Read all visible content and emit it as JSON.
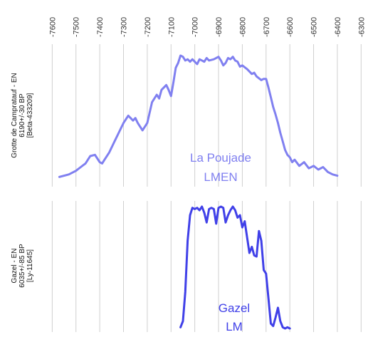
{
  "chart_data": {
    "type": "line",
    "x_axis": {
      "ticks": [
        -7600,
        -7500,
        -7400,
        -7300,
        -7200,
        -7100,
        -7000,
        -6900,
        -6800,
        -6700,
        -6600,
        -6500,
        -6400,
        -6300
      ],
      "tick_labels": [
        "-7600",
        "-7500",
        "-7400",
        "-7300",
        "-7200",
        "-7100",
        "-7000",
        "-6900",
        "-6800",
        "-6700",
        "-6600",
        "-6500",
        "-6400",
        "-6300"
      ],
      "range": [
        -7640,
        -6280
      ],
      "label_orientation": "vertical",
      "position": "top"
    },
    "grid": true,
    "panels": [
      {
        "label_lines": [
          "Grotte de Campratauf - EN",
          "6190+/-30 BP",
          "[Beta-433209]"
        ],
        "annotation_lines": [
          "La Poujade",
          "LMEN"
        ],
        "color": "#8080f0",
        "series": {
          "x": [
            -7570,
            -7530,
            -7500,
            -7480,
            -7460,
            -7440,
            -7420,
            -7410,
            -7400,
            -7390,
            -7380,
            -7360,
            -7340,
            -7320,
            -7300,
            -7280,
            -7260,
            -7250,
            -7240,
            -7220,
            -7200,
            -7180,
            -7160,
            -7150,
            -7140,
            -7120,
            -7110,
            -7100,
            -7090,
            -7080,
            -7070,
            -7060,
            -7050,
            -7040,
            -7030,
            -7020,
            -7010,
            -7000,
            -6990,
            -6980,
            -6960,
            -6950,
            -6940,
            -6920,
            -6900,
            -6890,
            -6880,
            -6870,
            -6860,
            -6850,
            -6840,
            -6830,
            -6820,
            -6810,
            -6800,
            -6780,
            -6760,
            -6750,
            -6740,
            -6720,
            -6710,
            -6700,
            -6690,
            -6680,
            -6670,
            -6660,
            -6650,
            -6640,
            -6630,
            -6620,
            -6610,
            -6600,
            -6590,
            -6580,
            -6560,
            -6540,
            -6520,
            -6500,
            -6480,
            -6460,
            -6440,
            -6420,
            -6400
          ],
          "y": [
            0.01,
            0.03,
            0.06,
            0.09,
            0.12,
            0.18,
            0.19,
            0.16,
            0.13,
            0.12,
            0.15,
            0.21,
            0.29,
            0.37,
            0.45,
            0.51,
            0.47,
            0.49,
            0.45,
            0.39,
            0.45,
            0.62,
            0.68,
            0.65,
            0.72,
            0.76,
            0.72,
            0.67,
            0.78,
            0.9,
            0.94,
            1.0,
            0.99,
            0.96,
            0.97,
            0.95,
            0.97,
            0.95,
            0.93,
            0.97,
            0.95,
            0.98,
            0.96,
            0.97,
            0.99,
            0.96,
            0.92,
            0.94,
            0.98,
            0.97,
            0.99,
            0.96,
            0.95,
            0.91,
            0.92,
            0.89,
            0.85,
            0.86,
            0.83,
            0.8,
            0.81,
            0.81,
            0.74,
            0.66,
            0.58,
            0.52,
            0.45,
            0.37,
            0.3,
            0.23,
            0.19,
            0.17,
            0.13,
            0.15,
            0.1,
            0.13,
            0.08,
            0.1,
            0.07,
            0.09,
            0.05,
            0.03,
            0.02
          ]
        }
      },
      {
        "label_lines": [
          "Gazel - EN",
          "6035+/-85 BP",
          "[Ly-11645]"
        ],
        "annotation_lines": [
          "Gazel",
          "LM"
        ],
        "color": "#4040e8",
        "series": {
          "x": [
            -7060,
            -7050,
            -7040,
            -7030,
            -7020,
            -7010,
            -7000,
            -6990,
            -6980,
            -6970,
            -6960,
            -6950,
            -6940,
            -6930,
            -6920,
            -6910,
            -6900,
            -6890,
            -6880,
            -6870,
            -6860,
            -6850,
            -6840,
            -6830,
            -6820,
            -6810,
            -6800,
            -6790,
            -6780,
            -6770,
            -6760,
            -6750,
            -6740,
            -6730,
            -6720,
            -6710,
            -6700,
            -6690,
            -6680,
            -6670,
            -6660,
            -6650,
            -6640,
            -6630,
            -6620,
            -6610,
            -6600
          ],
          "y": [
            0.01,
            0.06,
            0.3,
            0.72,
            0.93,
            0.99,
            0.98,
            0.99,
            0.97,
            1.0,
            0.95,
            0.87,
            0.98,
            0.99,
            0.98,
            0.86,
            0.99,
            1.0,
            0.99,
            0.87,
            0.93,
            0.97,
            1.0,
            0.97,
            0.91,
            0.93,
            0.83,
            0.88,
            0.75,
            0.62,
            0.67,
            0.6,
            0.59,
            0.8,
            0.72,
            0.48,
            0.45,
            0.25,
            0.04,
            0.02,
            0.09,
            0.17,
            0.06,
            0.01,
            0.0,
            0.01,
            0.0
          ]
        }
      }
    ]
  }
}
